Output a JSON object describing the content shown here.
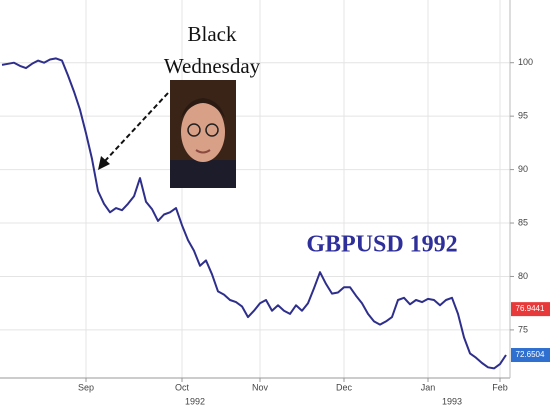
{
  "chart_data": {
    "type": "line",
    "title": "GBPUSD 1992",
    "annotation": [
      "Black",
      "Wednesday"
    ],
    "categories": [
      null,
      null,
      null,
      null,
      null,
      null,
      null,
      null,
      null,
      null,
      null,
      null,
      null,
      null,
      "Sep",
      null,
      null,
      null,
      null,
      null,
      null,
      null,
      null,
      null,
      null,
      null,
      null,
      null,
      null,
      null,
      "Oct",
      null,
      null,
      null,
      null,
      null,
      null,
      null,
      null,
      null,
      null,
      null,
      null,
      "Nov",
      null,
      null,
      null,
      null,
      null,
      null,
      null,
      null,
      null,
      null,
      null,
      null,
      null,
      "Dec",
      null,
      null,
      null,
      null,
      null,
      null,
      null,
      null,
      null,
      null,
      null,
      null,
      null,
      "Jan",
      null,
      null,
      null,
      null,
      null,
      null,
      null,
      null,
      null,
      null,
      null,
      "Feb",
      null
    ],
    "years": [
      "1992",
      "1993"
    ],
    "series": [
      {
        "name": "GBPUSD",
        "color": "#2e2f8c",
        "values": [
          99.8,
          99.9,
          100.0,
          99.7,
          99.5,
          99.9,
          100.2,
          100.0,
          100.3,
          100.4,
          100.2,
          98.8,
          97.3,
          95.6,
          93.4,
          91.0,
          88.0,
          86.8,
          86.0,
          86.4,
          86.2,
          86.8,
          87.5,
          89.2,
          87.0,
          86.3,
          85.2,
          85.8,
          86.0,
          86.4,
          84.8,
          83.4,
          82.4,
          81.0,
          81.5,
          80.2,
          78.6,
          78.3,
          77.8,
          77.6,
          77.2,
          76.2,
          76.8,
          77.5,
          77.8,
          76.8,
          77.3,
          76.8,
          76.5,
          77.3,
          76.8,
          77.5,
          78.9,
          80.4,
          79.3,
          78.4,
          78.5,
          79.0,
          79.0,
          78.2,
          77.5,
          76.5,
          75.8,
          75.5,
          75.8,
          76.2,
          77.8,
          78.0,
          77.4,
          77.8,
          77.6,
          77.9,
          77.8,
          77.3,
          77.8,
          78.0,
          76.5,
          74.3,
          72.8,
          72.4,
          71.9,
          71.5,
          71.4,
          71.8,
          72.65
        ]
      }
    ],
    "badges": [
      {
        "value": 76.9441,
        "color": "#e8393a"
      },
      {
        "value": 72.6504,
        "color": "#2f6fd0"
      }
    ],
    "ylim": [
      70.5,
      105.4
    ],
    "yticks": [
      75,
      80,
      85,
      90,
      95,
      100
    ],
    "grid": true
  }
}
